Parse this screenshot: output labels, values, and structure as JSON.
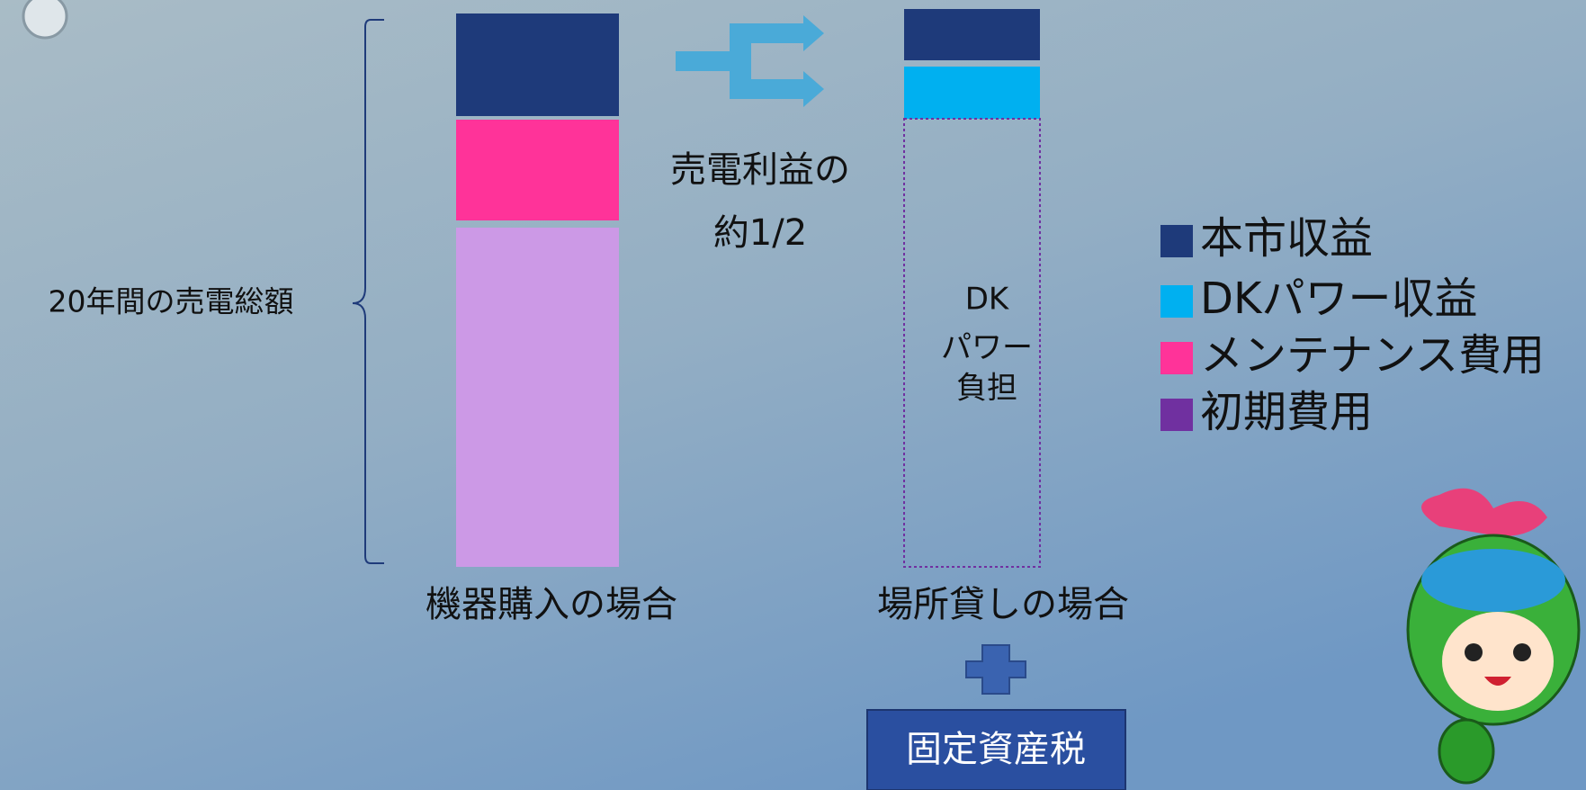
{
  "diagram": {
    "total_label": "20年間の売電総額",
    "share_label": [
      "売電利益の",
      "約1/2"
    ],
    "dk_label": [
      "DK",
      "パワー",
      "負担"
    ],
    "left_caption": "機器購入の場合",
    "right_caption": "場所貸しの場合",
    "tax_box": "固定資産税",
    "legend": [
      "本市収益",
      "DKパワー収益",
      "メンテナンス費用",
      "初期費用"
    ]
  }
}
